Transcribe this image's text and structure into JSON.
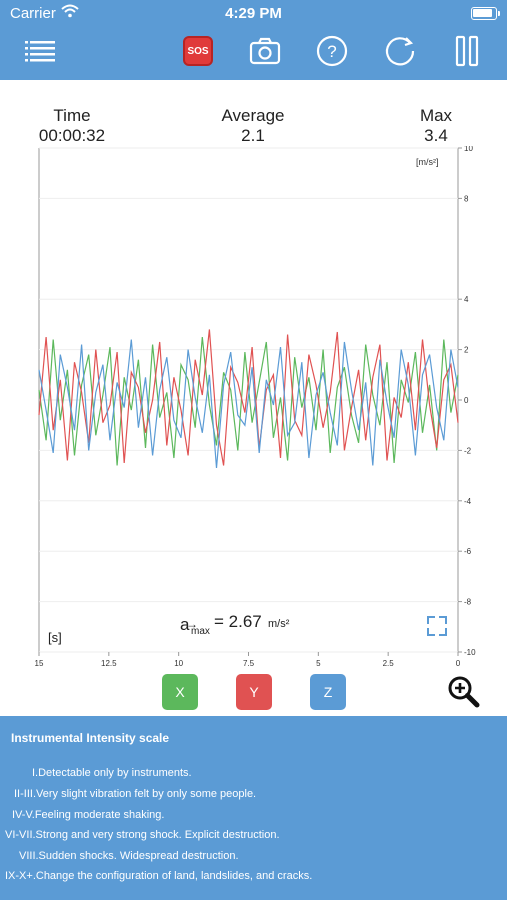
{
  "status": {
    "carrier": "Carrier",
    "time": "4:29 PM"
  },
  "toolbar": {
    "sos_label": "SOS"
  },
  "stats": {
    "time_label": "Time",
    "time_value": "00:00:32",
    "average_label": "Average",
    "average_value": "2.1",
    "max_label": "Max",
    "max_value": "3.4"
  },
  "chart": {
    "unit_label": "[m/s²]",
    "x_unit_label": "[s]",
    "amax_symbol": "a",
    "amax_subscript": "max",
    "amax_value": "= 2.67",
    "amax_unit": "m/s²"
  },
  "axis_buttons": [
    {
      "label": "X",
      "color": "#5cb85c"
    },
    {
      "label": "Y",
      "color": "#e05252"
    },
    {
      "label": "Z",
      "color": "#5b9bd5"
    }
  ],
  "info": {
    "title": "Instrumental Intensity scale",
    "lines": [
      "I.Detectable only by instruments.",
      "II-III.Very slight vibration felt by only some people.",
      "IV-V.Feeling moderate shaking.",
      "VI-VII.Strong and very strong shock. Explicit destruction.",
      "VIII.Sudden shocks. Widespread destruction.",
      "IX-X+.Change the configuration of land, landslides, and cracks."
    ]
  },
  "chart_data": {
    "type": "line",
    "xlim": [
      15,
      0
    ],
    "ylim": [
      -10,
      10
    ],
    "x_ticks": [
      "15",
      "12.5",
      "10",
      "7.5",
      "5",
      "2.5",
      "0"
    ],
    "y_ticks": [
      "10",
      "8",
      "4",
      "2",
      "0",
      "-2",
      "-4",
      "-6",
      "-8",
      "-10"
    ],
    "grid": true,
    "series": [
      {
        "name": "X",
        "color": "#5cb85c",
        "values": [
          0.4,
          -1.6,
          2.4,
          -0.8,
          1.2,
          -2.2,
          0.6,
          1.8,
          -1.4,
          0.2,
          2.1,
          -2.6,
          0.9,
          -0.4,
          1.6,
          -1.9,
          2.2,
          -0.7,
          0.3,
          -2.3,
          1.4,
          0.8,
          -1.1,
          2.5,
          -0.2,
          -1.8,
          1.1,
          0.4,
          -2.0,
          1.9,
          -0.9,
          0.7,
          2.3,
          -1.5,
          0.1,
          -2.4,
          1.7,
          -0.3,
          0.9,
          -1.2,
          2.0,
          -2.1,
          0.5,
          1.3,
          -0.6,
          -1.7,
          2.2,
          0.2,
          -1.0,
          1.5,
          -2.5,
          0.8,
          -0.1,
          1.9,
          -1.3,
          0.6,
          -2.0,
          2.4,
          -0.5,
          1.0
        ]
      },
      {
        "name": "Y",
        "color": "#e05252",
        "values": [
          -0.6,
          2.5,
          -1.2,
          0.8,
          -2.4,
          1.5,
          0.3,
          -1.7,
          2.0,
          -0.9,
          -0.2,
          1.9,
          -2.5,
          1.1,
          0.5,
          -1.3,
          0.0,
          2.3,
          -1.8,
          0.9,
          -0.4,
          -2.2,
          1.6,
          0.2,
          2.8,
          -1.0,
          -2.6,
          1.3,
          0.7,
          -0.5,
          2.1,
          -1.9,
          0.4,
          1.0,
          -2.3,
          2.6,
          -0.8,
          -1.4,
          1.8,
          0.6,
          -1.1,
          0.3,
          2.7,
          -2.0,
          -0.3,
          1.2,
          -1.6,
          0.9,
          2.2,
          -2.4,
          0.1,
          -0.7,
          1.5,
          -1.2,
          2.4,
          -0.2,
          -1.9,
          0.8,
          1.4,
          -0.9
        ]
      },
      {
        "name": "Z",
        "color": "#5b9bd5",
        "values": [
          1.2,
          -0.4,
          -2.1,
          1.8,
          0.5,
          -1.2,
          2.2,
          -2.0,
          0.3,
          1.4,
          -1.6,
          0.7,
          -0.3,
          2.4,
          -1.1,
          0.9,
          -2.2,
          0.4,
          1.7,
          -0.8,
          -1.5,
          2.0,
          0.1,
          -1.3,
          1.0,
          -2.7,
          0.6,
          1.9,
          -0.6,
          -1.0,
          1.3,
          -2.1,
          0.8,
          -0.2,
          2.1,
          -1.4,
          -0.9,
          1.5,
          -2.3,
          0.2,
          1.1,
          -0.5,
          -1.8,
          2.3,
          0.4,
          -1.2,
          0.7,
          -2.6,
          1.6,
          -0.1,
          -1.5,
          2.0,
          0.6,
          -2.2,
          1.0,
          1.8,
          -0.3,
          -1.6,
          2.0,
          0.5
        ]
      }
    ]
  }
}
